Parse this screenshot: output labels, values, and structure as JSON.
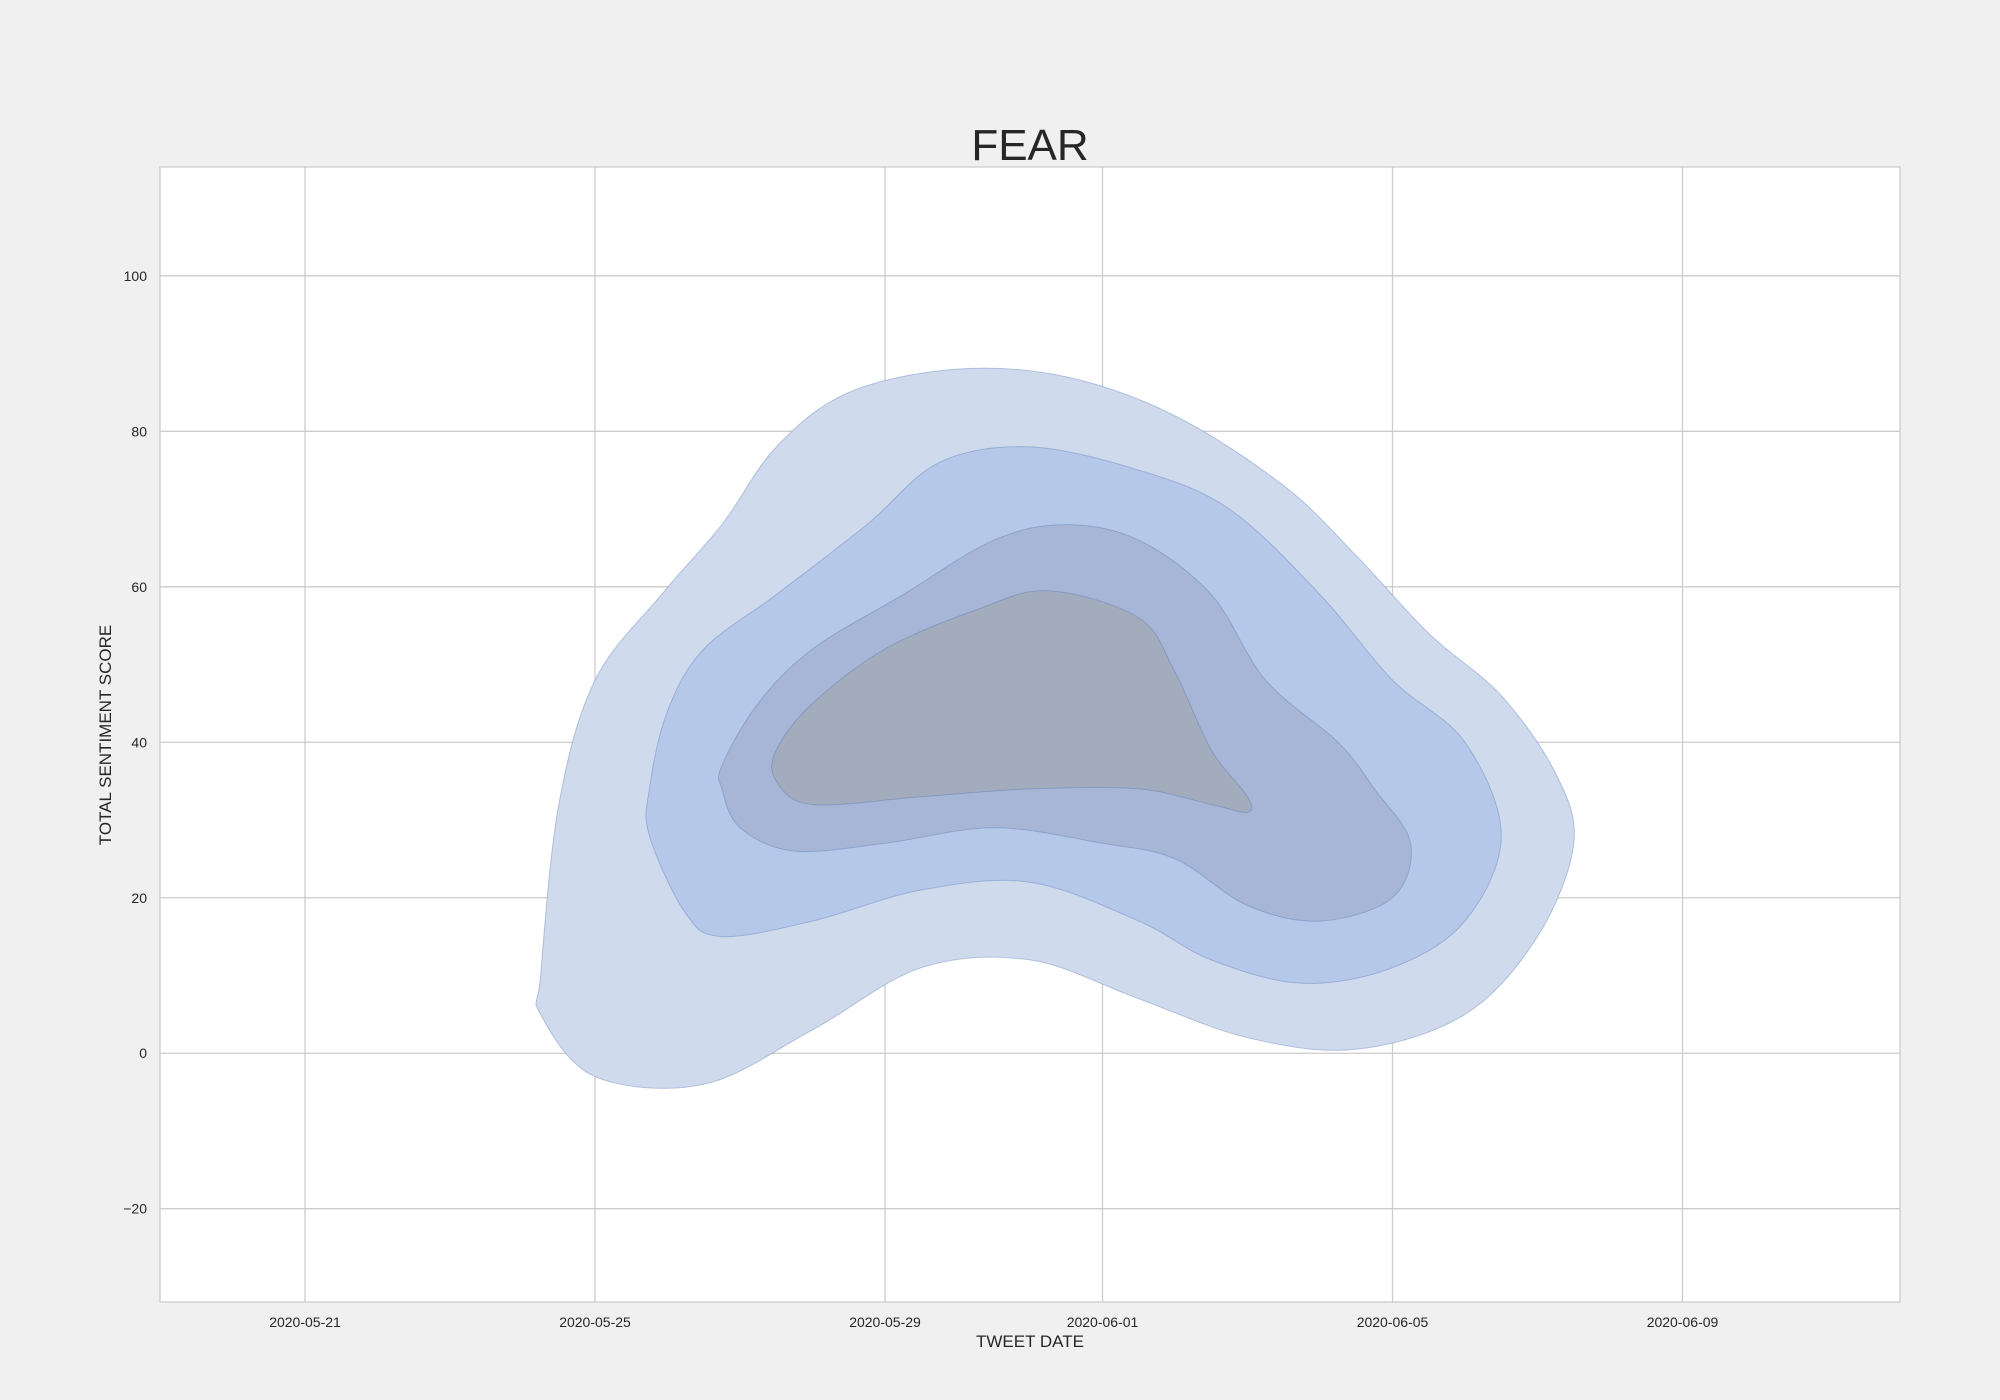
{
  "chart_data": {
    "type": "kde-contour",
    "title": "FEAR",
    "xlabel": "TWEET DATE",
    "ylabel": "TOTAL SENTIMENT SCORE",
    "x_ticks": [
      "2020-05-21",
      "2020-05-25",
      "2020-05-29",
      "2020-06-01",
      "2020-06-05",
      "2020-06-09"
    ],
    "y_ticks": [
      -20,
      0,
      20,
      40,
      60,
      80,
      100
    ],
    "xlim": [
      "2020-05-19",
      "2020-06-12"
    ],
    "ylim": [
      -32,
      114
    ],
    "grid": true,
    "legend": "none",
    "colors": {
      "background": "#f0f0f0",
      "plot_area": "#ffffff",
      "grid": "#cccccc",
      "fill": "#4c72b0",
      "level_fills": [
        "#d0daed",
        "#b6c8ea",
        "#a7b6d6",
        "#a2acbd"
      ]
    },
    "contour_levels": [
      {
        "level": 1,
        "outline": [
          [
            "2020-05-24T06:00",
            10
          ],
          [
            "2020-05-24T12:00",
            32
          ],
          [
            "2020-05-25T00:00",
            48
          ],
          [
            "2020-05-25T22:00",
            59
          ],
          [
            "2020-05-26T18:00",
            68
          ],
          [
            "2020-05-27T12:00",
            78
          ],
          [
            "2020-05-28T12:00",
            85
          ],
          [
            "2020-05-30T00:00",
            88
          ],
          [
            "2020-05-31T12:00",
            87
          ],
          [
            "2020-06-02T00:00",
            82
          ],
          [
            "2020-06-03T12:00",
            73
          ],
          [
            "2020-06-04T12:00",
            64
          ],
          [
            "2020-06-05T12:00",
            54
          ],
          [
            "2020-06-06T12:00",
            46
          ],
          [
            "2020-06-07T06:00",
            36
          ],
          [
            "2020-06-07T12:00",
            27
          ],
          [
            "2020-06-07T00:00",
            15
          ],
          [
            "2020-06-06T00:00",
            5
          ],
          [
            "2020-06-04T12:00",
            0.5
          ],
          [
            "2020-06-03T00:00",
            2
          ],
          [
            "2020-06-01T12:00",
            7
          ],
          [
            "2020-05-31T00:00",
            12
          ],
          [
            "2020-05-29T12:00",
            11
          ],
          [
            "2020-05-28T00:00",
            3
          ],
          [
            "2020-05-26T12:00",
            -4
          ],
          [
            "2020-05-25T00:00",
            -3
          ],
          [
            "2020-05-24T06:00",
            5
          ]
        ]
      },
      {
        "level": 2,
        "outline": [
          [
            "2020-05-25T18:00",
            34
          ],
          [
            "2020-05-26T00:00",
            44
          ],
          [
            "2020-05-26T12:00",
            52
          ],
          [
            "2020-05-27T12:00",
            59
          ],
          [
            "2020-05-28T18:00",
            68
          ],
          [
            "2020-05-29T18:00",
            76
          ],
          [
            "2020-05-31T00:00",
            78
          ],
          [
            "2020-06-01T12:00",
            75
          ],
          [
            "2020-06-02T18:00",
            70
          ],
          [
            "2020-06-04T00:00",
            59
          ],
          [
            "2020-06-05T00:00",
            48
          ],
          [
            "2020-06-06T00:00",
            40
          ],
          [
            "2020-06-06T12:00",
            28
          ],
          [
            "2020-06-06T00:00",
            17
          ],
          [
            "2020-06-05T00:00",
            11
          ],
          [
            "2020-06-03T18:00",
            9
          ],
          [
            "2020-06-02T12:00",
            12
          ],
          [
            "2020-06-01T12:00",
            17
          ],
          [
            "2020-05-31T00:00",
            22
          ],
          [
            "2020-05-29T12:00",
            21
          ],
          [
            "2020-05-28T00:00",
            17
          ],
          [
            "2020-05-26T18:00",
            15
          ],
          [
            "2020-05-26T06:00",
            18
          ],
          [
            "2020-05-25T18:00",
            28
          ]
        ]
      },
      {
        "level": 3,
        "outline": [
          [
            "2020-05-26T18:00",
            37
          ],
          [
            "2020-05-27T06:00",
            45
          ],
          [
            "2020-05-28T00:00",
            52
          ],
          [
            "2020-05-29T06:00",
            59
          ],
          [
            "2020-05-30T12:00",
            66
          ],
          [
            "2020-05-31T12:00",
            68
          ],
          [
            "2020-06-01T12:00",
            66
          ],
          [
            "2020-06-02T12:00",
            59
          ],
          [
            "2020-06-03T06:00",
            48
          ],
          [
            "2020-06-04T06:00",
            40
          ],
          [
            "2020-06-04T18:00",
            34
          ],
          [
            "2020-06-05T06:00",
            27
          ],
          [
            "2020-06-05T00:00",
            20
          ],
          [
            "2020-06-04T00:00",
            17
          ],
          [
            "2020-06-03T00:00",
            19
          ],
          [
            "2020-06-02T00:00",
            25
          ],
          [
            "2020-06-01T00:00",
            27
          ],
          [
            "2020-05-30T12:00",
            29
          ],
          [
            "2020-05-29T00:00",
            27
          ],
          [
            "2020-05-27T18:00",
            26
          ],
          [
            "2020-05-27T00:00",
            29
          ],
          [
            "2020-05-26T18:00",
            34
          ]
        ]
      },
      {
        "level": 4,
        "outline": [
          [
            "2020-05-27T12:00",
            39
          ],
          [
            "2020-05-28T00:00",
            45
          ],
          [
            "2020-05-29T00:00",
            52
          ],
          [
            "2020-05-30T06:00",
            57
          ],
          [
            "2020-05-31T06:00",
            59.5
          ],
          [
            "2020-06-01T12:00",
            56
          ],
          [
            "2020-06-02T00:00",
            49
          ],
          [
            "2020-06-02T12:00",
            39
          ],
          [
            "2020-06-03T00:00",
            33
          ],
          [
            "2020-06-03T00:00",
            31
          ],
          [
            "2020-06-02T12:00",
            32
          ],
          [
            "2020-06-01T12:00",
            34
          ],
          [
            "2020-05-31T00:00",
            34
          ],
          [
            "2020-05-29T12:00",
            33
          ],
          [
            "2020-05-28T00:00",
            32
          ],
          [
            "2020-05-27T12:00",
            35
          ]
        ]
      }
    ]
  }
}
